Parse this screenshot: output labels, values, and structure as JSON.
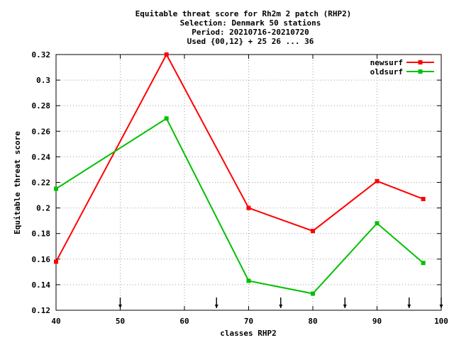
{
  "chart_data": {
    "type": "line",
    "title_lines": [
      "Equitable threat score  for Rh2m 2 patch (RHP2)",
      "Selection: Denmark     50 stations",
      "Period: 20210716-20210720",
      "Used {00,12} + 25 26 ... 36"
    ],
    "xlabel": "classes RHP2",
    "ylabel": "Equitable threat score",
    "xlim": [
      40,
      100
    ],
    "ylim": [
      0.12,
      0.32
    ],
    "xticks": [
      "40",
      "50",
      "60",
      "70",
      "80",
      "90",
      "100"
    ],
    "yticks": [
      "0.12",
      "0.14",
      "0.16",
      "0.18",
      "0.2",
      "0.22",
      "0.24",
      "0.26",
      "0.28",
      "0.3",
      "0.32"
    ],
    "grid": true,
    "legend_position": "top-right",
    "series": [
      {
        "name": "newsurf",
        "color": "#ff0000",
        "x": [
          40,
          57.2,
          70,
          80,
          90,
          97.2
        ],
        "y": [
          0.158,
          0.32,
          0.2,
          0.182,
          0.221,
          0.207
        ]
      },
      {
        "name": "oldsurf",
        "color": "#00c000",
        "x": [
          40,
          57.2,
          70,
          80,
          90,
          97.2
        ],
        "y": [
          0.215,
          0.27,
          0.143,
          0.133,
          0.188,
          0.157
        ]
      }
    ],
    "class_markers_x": [
      50,
      65,
      75,
      85,
      95,
      100
    ]
  }
}
